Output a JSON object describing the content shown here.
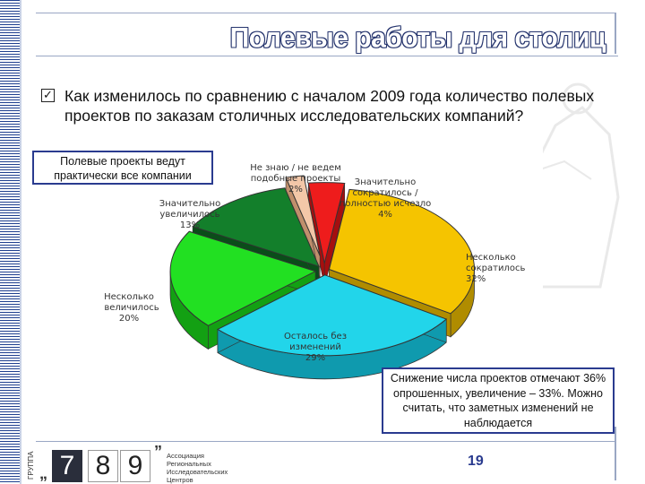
{
  "slide": {
    "title": "Полевые работы для столиц",
    "question": "Как изменилось по сравнению с началом 2009 года количество полевых проектов по заказам столичных исследовательских компаний?",
    "page_number": "19"
  },
  "callouts": {
    "top": "Полевые проекты ведут практически все компании",
    "bottom": "Снижение числа проектов отмечают 36% опрошенных, увеличение – 33%. Можно считать, что заметных изменений не наблюдается"
  },
  "logo": {
    "vertical_text": "ГРУППА",
    "digit_7": "7",
    "digit_8": "8",
    "digit_9": "9",
    "text_lines": [
      "Ассоциация",
      "Региональных",
      "Исследовательских",
      "Центров"
    ]
  },
  "icons": {
    "bullet": "checkbox-icon"
  },
  "chart_data": {
    "type": "pie",
    "style": "3d-exploded",
    "series": [
      {
        "name_lines": [
          "Несколько",
          "сократилось"
        ],
        "value": 32,
        "label": "32%",
        "color": "#f5c400",
        "side": "#b08c00"
      },
      {
        "name_lines": [
          "Осталось без",
          "изменений"
        ],
        "value": 29,
        "label": "29%",
        "color": "#22d5ea",
        "side": "#0f9aae"
      },
      {
        "name_lines": [
          "Несколько",
          "увеличилось"
        ],
        "value": 20,
        "label": "20%",
        "color": "#22e022",
        "side": "#13a013"
      },
      {
        "name_lines": [
          "Значительно",
          "увеличилось"
        ],
        "value": 13,
        "label": "13%",
        "color": "#137f2b",
        "side": "#0a4d19"
      },
      {
        "name_lines": [
          "Не знаю / не ведем",
          "подобные проекты"
        ],
        "value": 2,
        "label": "2%",
        "color": "#f3c7a8",
        "side": "#c08f6c"
      },
      {
        "name_lines": [
          "Значительно",
          "сократилось /",
          "полностью исчезло"
        ],
        "value": 4,
        "label": "4%",
        "color": "#ee1c1c",
        "side": "#a50f0f"
      }
    ]
  }
}
